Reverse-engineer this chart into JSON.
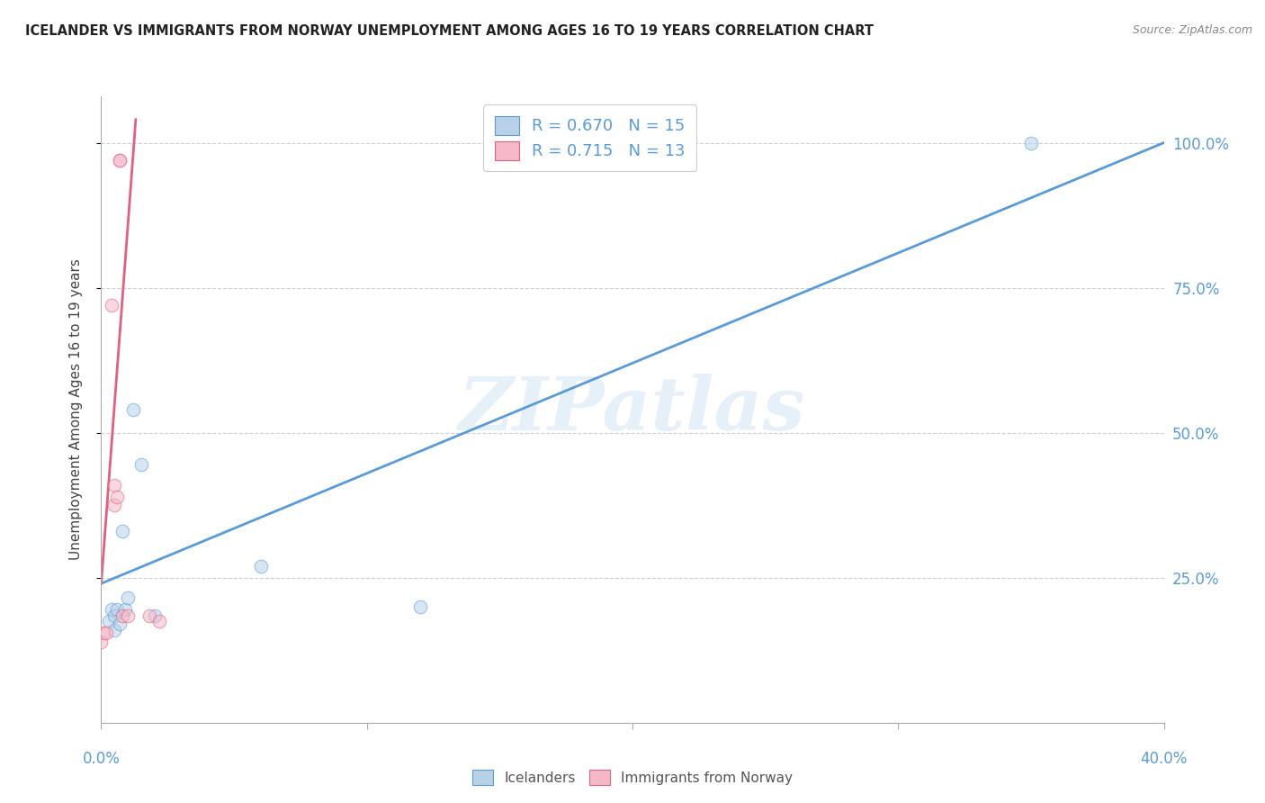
{
  "title": "ICELANDER VS IMMIGRANTS FROM NORWAY UNEMPLOYMENT AMONG AGES 16 TO 19 YEARS CORRELATION CHART",
  "source": "Source: ZipAtlas.com",
  "ylabel": "Unemployment Among Ages 16 to 19 years",
  "watermark": "ZIPatlas",
  "bg_color": "#ffffff",
  "grid_color": "#d0d0d0",
  "title_color": "#222222",
  "axis_color": "#5b9bd5",
  "icelanders_color": "#b8d0e8",
  "norway_color": "#f4b8c8",
  "blue_line_color": "#5b9bd5",
  "pink_line_color": "#e06080",
  "r_icelanders": 0.67,
  "n_icelanders": 15,
  "r_norway": 0.715,
  "n_norway": 13,
  "xlim": [
    0.0,
    0.4
  ],
  "ylim": [
    0.0,
    1.08
  ],
  "yticks": [
    0.25,
    0.5,
    0.75,
    1.0
  ],
  "ytick_labels": [
    "25.0%",
    "50.0%",
    "75.0%",
    "100.0%"
  ],
  "blue_line_x0": 0.0,
  "blue_line_y0": 0.24,
  "blue_line_x1": 0.4,
  "blue_line_y1": 1.0,
  "pink_line_x0": 0.0,
  "pink_line_y0": 0.24,
  "pink_line_x1": 0.013,
  "pink_line_y1": 1.04,
  "icelanders_x": [
    0.003,
    0.004,
    0.005,
    0.005,
    0.006,
    0.007,
    0.008,
    0.009,
    0.01,
    0.012,
    0.015,
    0.02,
    0.06,
    0.12,
    0.35
  ],
  "icelanders_y": [
    0.175,
    0.195,
    0.16,
    0.185,
    0.195,
    0.17,
    0.33,
    0.195,
    0.215,
    0.54,
    0.445,
    0.185,
    0.27,
    0.2,
    1.0
  ],
  "norway_x": [
    0.0,
    0.001,
    0.002,
    0.004,
    0.005,
    0.005,
    0.006,
    0.007,
    0.007,
    0.008,
    0.01,
    0.018,
    0.022
  ],
  "norway_y": [
    0.14,
    0.155,
    0.155,
    0.72,
    0.375,
    0.41,
    0.39,
    0.97,
    0.97,
    0.185,
    0.185,
    0.185,
    0.175
  ],
  "marker_size": 110,
  "marker_alpha": 0.55,
  "line_width": 2.0
}
